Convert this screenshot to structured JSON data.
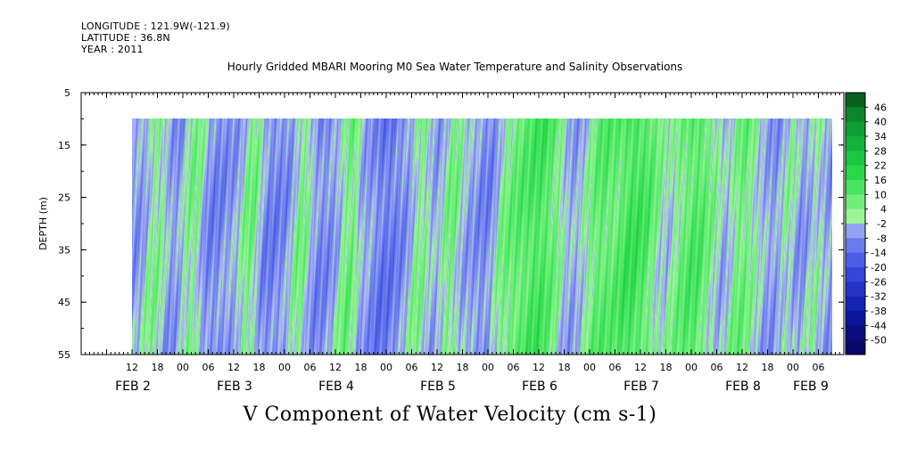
{
  "header": {
    "longitude": "LONGITUDE : 121.9W(-121.9)",
    "latitude": "LATITUDE : 36.8N",
    "year": "YEAR : 2011"
  },
  "chart_data": {
    "type": "heatmap",
    "title": "Hourly Gridded MBARI Mooring M0 Sea Water Temperature and Salinity Observations",
    "xlabel": "V Component of Water Velocity (cm s-1)",
    "ylabel": "DEPTH (m)",
    "ylim": [
      55,
      5
    ],
    "yticks": [
      5,
      15,
      25,
      35,
      45,
      55
    ],
    "x_hour_ticks": [
      "12",
      "18",
      "00",
      "06",
      "12",
      "18",
      "00",
      "06",
      "12",
      "18",
      "00",
      "06",
      "12",
      "18",
      "00",
      "06",
      "12",
      "18",
      "00",
      "06",
      "12",
      "18",
      "00",
      "06",
      "12",
      "18",
      "00",
      "06"
    ],
    "x_day_labels": [
      {
        "label": "FEB  2",
        "hour": 12
      },
      {
        "label": "FEB  3",
        "hour": 36
      },
      {
        "label": "FEB  4",
        "hour": 60
      },
      {
        "label": "FEB  5",
        "hour": 84
      },
      {
        "label": "FEB  6",
        "hour": 108
      },
      {
        "label": "FEB  7",
        "hour": 132
      },
      {
        "label": "FEB  8",
        "hour": 156
      },
      {
        "label": "FEB  9",
        "hour": 172
      }
    ],
    "data_depth_range": [
      10,
      55
    ],
    "colorbar_levels": [
      46,
      40,
      34,
      28,
      22,
      16,
      10,
      4,
      -2,
      -8,
      -14,
      -20,
      -26,
      -32,
      -38,
      -44,
      -50
    ],
    "colors": {
      "positive_strong": "#0a7a2a",
      "positive": "#22d645",
      "positive_light": "#9ff59a",
      "negative_light": "#b4bcf5",
      "negative": "#6e80ee",
      "negative_strong": "#0b1aa8"
    }
  }
}
